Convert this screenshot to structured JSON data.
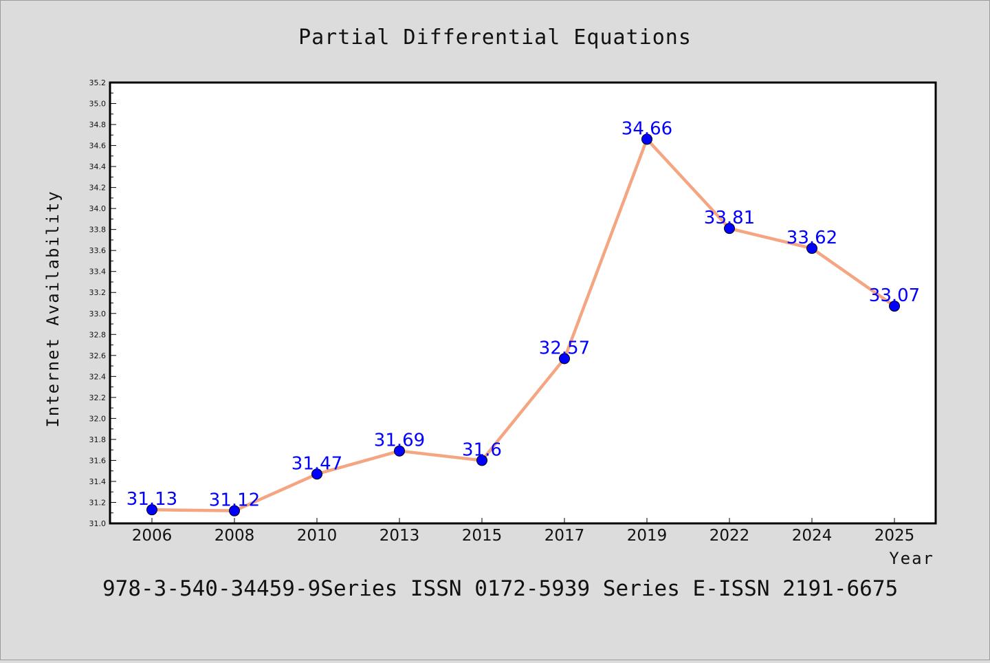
{
  "chart_data": {
    "type": "line",
    "title": "Partial Differential Equations",
    "xlabel": "Year",
    "ylabel": "Internet Availability",
    "footer": "978-3-540-34459-9Series ISSN 0172-5939 Series E-ISSN 2191-6675",
    "categories": [
      "2006",
      "2008",
      "2010",
      "2013",
      "2015",
      "2017",
      "2019",
      "2022",
      "2024",
      "2025"
    ],
    "series": [
      {
        "values": [
          31.13,
          31.12,
          31.47,
          31.69,
          31.6,
          32.57,
          34.66,
          33.81,
          33.62,
          33.07
        ],
        "data_labels": [
          "31.13",
          "31.12",
          "31.47",
          "31.69",
          "31.6",
          "32.57",
          "34.66",
          "33.81",
          "33.62",
          "33.07"
        ]
      }
    ],
    "ylim": [
      31.0,
      35.2
    ],
    "yticks": [
      "31.0",
      "31.2",
      "31.4",
      "31.6",
      "31.8",
      "32.0",
      "32.2",
      "32.4",
      "32.6",
      "32.8",
      "33.0",
      "33.2",
      "33.4",
      "33.6",
      "33.8",
      "34.0",
      "34.2",
      "34.4",
      "34.6",
      "34.8",
      "35.0",
      "35.2"
    ],
    "grid": false,
    "colors": {
      "line": "#f4a582",
      "marker": "#0000ff",
      "data_label": "#0000ff",
      "plot_background": "#ffffff",
      "page_background": "#dcdcdc"
    }
  }
}
